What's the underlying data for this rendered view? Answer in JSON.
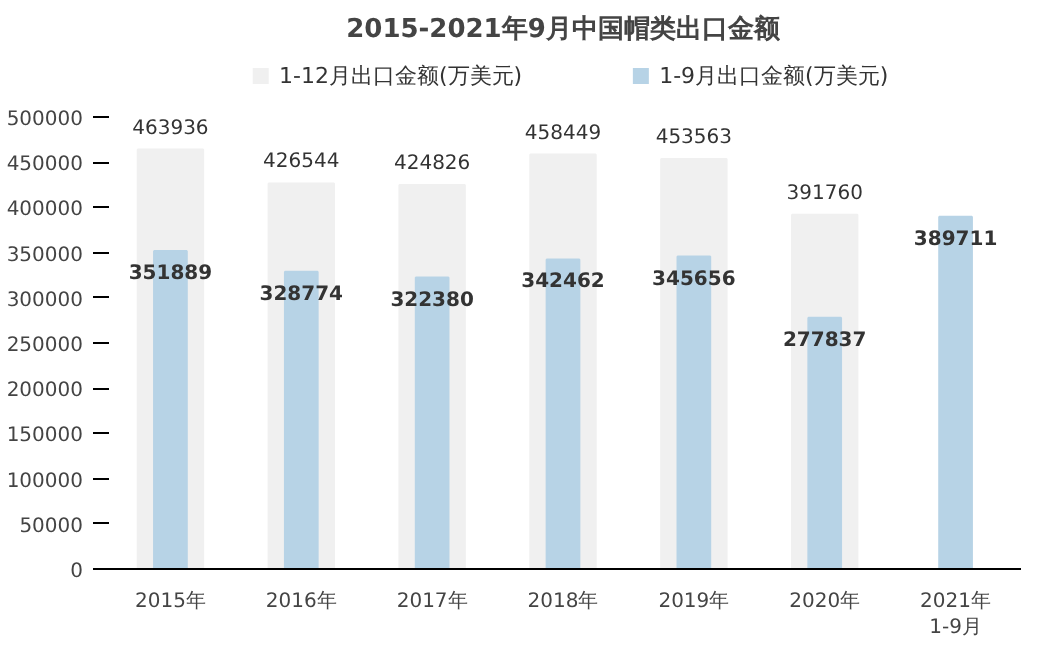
{
  "chart_data": {
    "type": "bar",
    "title": "2015-2021年9月中国帽类出口金额",
    "categories": [
      "2015年",
      "2016年",
      "2017年",
      "2018年",
      "2019年",
      "2020年",
      "2021年\n1-9月"
    ],
    "series": [
      {
        "name": "1-12月出口金额(万美元)",
        "color": "#f0f0f0",
        "values": [
          463936,
          426544,
          424826,
          458449,
          453563,
          391760,
          null
        ]
      },
      {
        "name": "1-9月出口金额(万美元)",
        "color": "#b7d3e6",
        "values": [
          351889,
          328774,
          322380,
          342462,
          345656,
          277837,
          389711
        ]
      }
    ],
    "ylim": [
      0,
      500000
    ],
    "yticks": [
      0,
      50000,
      100000,
      150000,
      200000,
      250000,
      300000,
      350000,
      400000,
      450000,
      500000
    ],
    "data_labels": true,
    "legend": "top",
    "grid": false
  }
}
